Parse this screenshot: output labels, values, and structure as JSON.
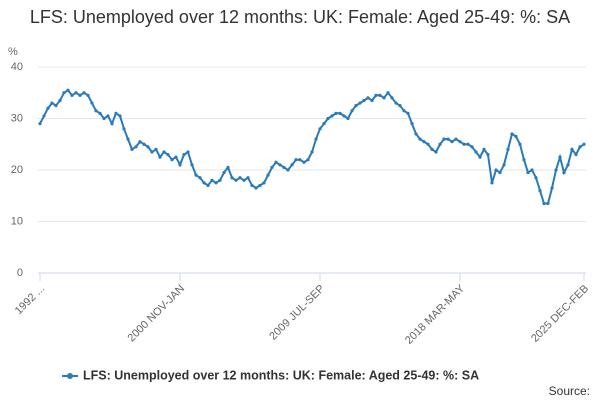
{
  "chart_data": {
    "type": "line",
    "title": "LFS: Unemployed over 12 months: UK: Female: Aged 25-49: %: SA",
    "y_label": "%",
    "source": "Source:",
    "categories": [
      "1992 ...",
      null,
      null,
      null,
      null,
      null,
      null,
      null,
      null,
      null,
      null,
      null,
      null,
      null,
      null,
      null,
      null,
      null,
      null,
      null,
      null,
      null,
      null,
      null,
      null,
      null,
      null,
      null,
      null,
      null,
      null,
      null,
      null,
      null,
      null,
      "2000 NOV-JAN",
      null,
      null,
      null,
      null,
      null,
      null,
      null,
      null,
      null,
      null,
      null,
      null,
      null,
      null,
      null,
      null,
      null,
      null,
      null,
      null,
      null,
      null,
      null,
      null,
      null,
      null,
      null,
      null,
      null,
      null,
      null,
      null,
      null,
      null,
      "2009 JUL-SEP",
      null,
      null,
      null,
      null,
      null,
      null,
      null,
      null,
      null,
      null,
      null,
      null,
      null,
      null,
      null,
      null,
      null,
      null,
      null,
      null,
      null,
      null,
      null,
      null,
      null,
      null,
      null,
      null,
      null,
      null,
      null,
      null,
      null,
      null,
      "2018 MAR-MAY",
      null,
      null,
      null,
      null,
      null,
      null,
      null,
      null,
      null,
      null,
      null,
      null,
      null,
      null,
      null,
      null,
      null,
      null,
      null,
      null,
      null,
      null,
      null,
      null,
      null,
      null,
      null,
      null,
      null,
      null,
      "2025 DEC-FEB"
    ],
    "series": [
      {
        "name": "LFS: Unemployed over 12 months: UK: Female: Aged 25-49: %: SA",
        "color": "#2a7ab9",
        "values": [
          29,
          30.5,
          32,
          33,
          32.5,
          33.5,
          35,
          35.5,
          34.5,
          35,
          34.5,
          35,
          34.5,
          33,
          31.5,
          31,
          30,
          30.5,
          29,
          31,
          30.5,
          28,
          26,
          24,
          24.5,
          25.5,
          25,
          24.5,
          23.5,
          24,
          22.5,
          23.5,
          23,
          22,
          22.5,
          21,
          23,
          23.5,
          21,
          19,
          18.5,
          17.5,
          17,
          18,
          17.5,
          18,
          19.5,
          20.5,
          18.5,
          18,
          18.5,
          18,
          18.5,
          17,
          16.5,
          17,
          17.5,
          19,
          20.5,
          21.5,
          21,
          20.5,
          20,
          21,
          22,
          22,
          21.5,
          22,
          23.5,
          26,
          28,
          29,
          30,
          30.5,
          31,
          31,
          30.5,
          30,
          31.5,
          32.5,
          33,
          33.5,
          34,
          33.5,
          34.5,
          34.5,
          34,
          35,
          34,
          33,
          32.5,
          31.5,
          31,
          29,
          27,
          26,
          25.5,
          25,
          24,
          23.5,
          25,
          26,
          26,
          25.5,
          26,
          25.5,
          25,
          25,
          24.5,
          23.5,
          22.5,
          24,
          23,
          17.5,
          20,
          19.5,
          21,
          24,
          27,
          26.5,
          25,
          22,
          19.5,
          20,
          18.5,
          16,
          13.5,
          13.5,
          16.5,
          20,
          22.5,
          19.5,
          21,
          24,
          23,
          24.5,
          25
        ]
      }
    ],
    "ylim": [
      0,
      40
    ],
    "yticks": [
      0,
      10,
      20,
      30,
      40
    ],
    "grid": true
  }
}
